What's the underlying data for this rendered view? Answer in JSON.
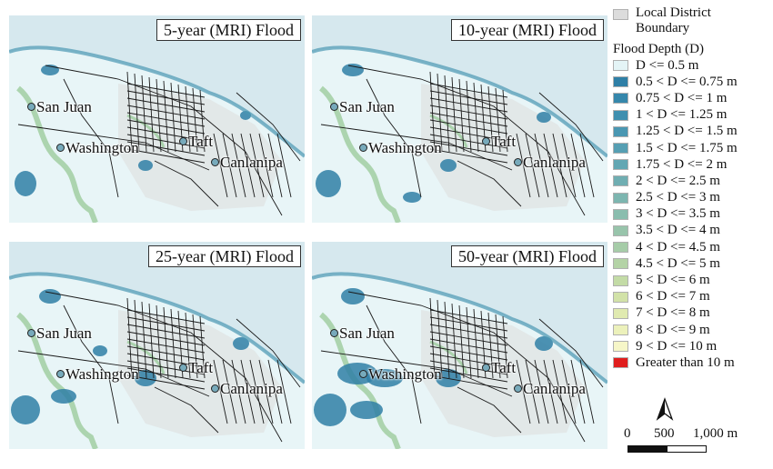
{
  "panels": [
    {
      "title": "5-year (MRI) Flood"
    },
    {
      "title": "10-year (MRI) Flood"
    },
    {
      "title": "25-year (MRI) Flood"
    },
    {
      "title": "50-year (MRI) Flood"
    }
  ],
  "place_labels": [
    "San Juan",
    "Washington",
    "Taft",
    "Canlanipa"
  ],
  "legend": {
    "boundary_label": "Local District Boundary",
    "boundary_color": "#dcdcdc",
    "depth_title": "Flood Depth (D)",
    "classes": [
      {
        "label": "D <= 0.5 m",
        "color": "#e4f4f6"
      },
      {
        "label": "0.5 < D <= 0.75 m",
        "color": "#2f7fa6"
      },
      {
        "label": "0.75 < D <= 1 m",
        "color": "#3587ab"
      },
      {
        "label": "1 < D <= 1.25 m",
        "color": "#3f8faf"
      },
      {
        "label": "1.25 < D <= 1.5 m",
        "color": "#4a97b2"
      },
      {
        "label": "1.5 < D <= 1.75 m",
        "color": "#569fb3"
      },
      {
        "label": "1.75 < D <= 2 m",
        "color": "#63a7b3"
      },
      {
        "label": "2 < D <= 2.5 m",
        "color": "#70aeb2"
      },
      {
        "label": "2.5 < D <= 3 m",
        "color": "#7db6b0"
      },
      {
        "label": "3 < D <= 3.5 m",
        "color": "#8abdae"
      },
      {
        "label": "3.5 < D <= 4 m",
        "color": "#98c4ab"
      },
      {
        "label": "4 < D <= 4.5 m",
        "color": "#a6cca8"
      },
      {
        "label": "4.5 < D <= 5 m",
        "color": "#b4d3a6"
      },
      {
        "label": "5 < D <= 6 m",
        "color": "#c3dba6"
      },
      {
        "label": "6 < D <= 7 m",
        "color": "#d2e2a8"
      },
      {
        "label": "7 < D <= 8 m",
        "color": "#e0eab0"
      },
      {
        "label": "8 < D <= 9 m",
        "color": "#ecf1bb"
      },
      {
        "label": "9 < D <= 10 m",
        "color": "#f6f6c8"
      },
      {
        "label": "Greater than 10 m",
        "color": "#e01e1e"
      }
    ]
  },
  "scale_bar": {
    "labels": [
      "0",
      "500",
      "1,000 m"
    ]
  },
  "colors": {
    "sea": "#d6e8ee",
    "land": "#e8f5f7",
    "river": "#9ccc9c",
    "road": "#1a1a1a",
    "deep": "#2f7fa6"
  }
}
